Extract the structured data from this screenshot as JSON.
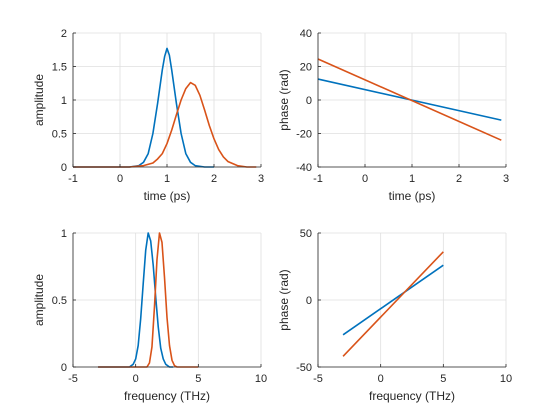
{
  "colors": {
    "series1": "#0072bd",
    "series2": "#d95319"
  },
  "chart_data": [
    {
      "type": "line",
      "xlabel": "time (ps)",
      "ylabel": "amplitude",
      "xlim": [
        -1,
        3
      ],
      "ylim": [
        0,
        2
      ],
      "xticks": [
        -1,
        0,
        1,
        2,
        3
      ],
      "yticks": [
        0,
        0.5,
        1,
        1.5,
        2
      ],
      "xticklabels": [
        "-1",
        "0",
        "1",
        "2",
        "3"
      ],
      "yticklabels": [
        "0",
        "0.5",
        "1",
        "1.5",
        "2"
      ],
      "grid": true,
      "series": [
        {
          "x": [
            -1,
            0.2,
            0.4,
            0.5,
            0.6,
            0.7,
            0.8,
            0.9,
            0.95,
            1.0,
            1.05,
            1.1,
            1.2,
            1.3,
            1.4,
            1.5,
            1.6,
            1.8,
            2.0
          ],
          "y": [
            0,
            0,
            0.02,
            0.07,
            0.2,
            0.5,
            0.95,
            1.45,
            1.65,
            1.77,
            1.67,
            1.45,
            0.95,
            0.5,
            0.2,
            0.07,
            0.02,
            0,
            0
          ]
        },
        {
          "x": [
            -1,
            0.2,
            0.5,
            0.7,
            0.8,
            0.9,
            1.0,
            1.1,
            1.2,
            1.3,
            1.4,
            1.5,
            1.6,
            1.7,
            1.8,
            1.9,
            2.0,
            2.1,
            2.2,
            2.3,
            2.5,
            2.7,
            2.9
          ],
          "y": [
            0,
            0,
            0.02,
            0.06,
            0.12,
            0.2,
            0.35,
            0.55,
            0.78,
            1.0,
            1.17,
            1.26,
            1.22,
            1.07,
            0.85,
            0.62,
            0.42,
            0.26,
            0.15,
            0.08,
            0.02,
            0,
            0
          ]
        }
      ]
    },
    {
      "type": "line",
      "xlabel": "time (ps)",
      "ylabel": "phase (rad)",
      "xlim": [
        -1,
        3
      ],
      "ylim": [
        -40,
        40
      ],
      "xticks": [
        -1,
        0,
        1,
        2,
        3
      ],
      "yticks": [
        -40,
        -20,
        0,
        20,
        40
      ],
      "xticklabels": [
        "-1",
        "0",
        "1",
        "2",
        "3"
      ],
      "yticklabels": [
        "-40",
        "-20",
        "0",
        "20",
        "40"
      ],
      "grid": true,
      "series": [
        {
          "x": [
            -1,
            2.9
          ],
          "y": [
            12.5,
            -12
          ]
        },
        {
          "x": [
            -1,
            2.9
          ],
          "y": [
            24.5,
            -24
          ]
        }
      ]
    },
    {
      "type": "line",
      "xlabel": "frequency (THz)",
      "ylabel": "amplitude",
      "xlim": [
        -5,
        10
      ],
      "ylim": [
        0,
        1
      ],
      "xticks": [
        -5,
        0,
        5,
        10
      ],
      "yticks": [
        0,
        0.5,
        1
      ],
      "xticklabels": [
        "-5",
        "0",
        "5",
        "10"
      ],
      "yticklabels": [
        "0",
        "0.5",
        "1"
      ],
      "grid": true,
      "series": [
        {
          "x": [
            -3,
            -0.5,
            -0.2,
            0,
            0.2,
            0.4,
            0.6,
            0.8,
            1.0,
            1.2,
            1.4,
            1.6,
            1.8,
            2.0,
            2.2,
            2.4,
            2.7,
            3.0
          ],
          "y": [
            0,
            0,
            0.02,
            0.06,
            0.16,
            0.36,
            0.62,
            0.87,
            1.0,
            0.94,
            0.76,
            0.52,
            0.3,
            0.14,
            0.06,
            0.02,
            0,
            0
          ]
        },
        {
          "x": [
            -3,
            0.9,
            1.1,
            1.3,
            1.5,
            1.7,
            1.9,
            2.1,
            2.3,
            2.5,
            2.7,
            2.9,
            3.1,
            3.3,
            5.0
          ],
          "y": [
            0,
            0,
            0.03,
            0.15,
            0.45,
            0.8,
            1.0,
            0.93,
            0.67,
            0.37,
            0.16,
            0.05,
            0.01,
            0,
            0
          ]
        }
      ]
    },
    {
      "type": "line",
      "xlabel": "frequency (THz)",
      "ylabel": "phase (rad)",
      "xlim": [
        -5,
        10
      ],
      "ylim": [
        -50,
        50
      ],
      "xticks": [
        -5,
        0,
        5,
        10
      ],
      "yticks": [
        -50,
        0,
        50
      ],
      "xticklabels": [
        "-5",
        "0",
        "5",
        "10"
      ],
      "yticklabels": [
        "-50",
        "0",
        "50"
      ],
      "grid": true,
      "series": [
        {
          "x": [
            -3,
            5
          ],
          "y": [
            -26,
            26
          ]
        },
        {
          "x": [
            -3,
            5
          ],
          "y": [
            -42,
            36
          ]
        }
      ]
    }
  ]
}
